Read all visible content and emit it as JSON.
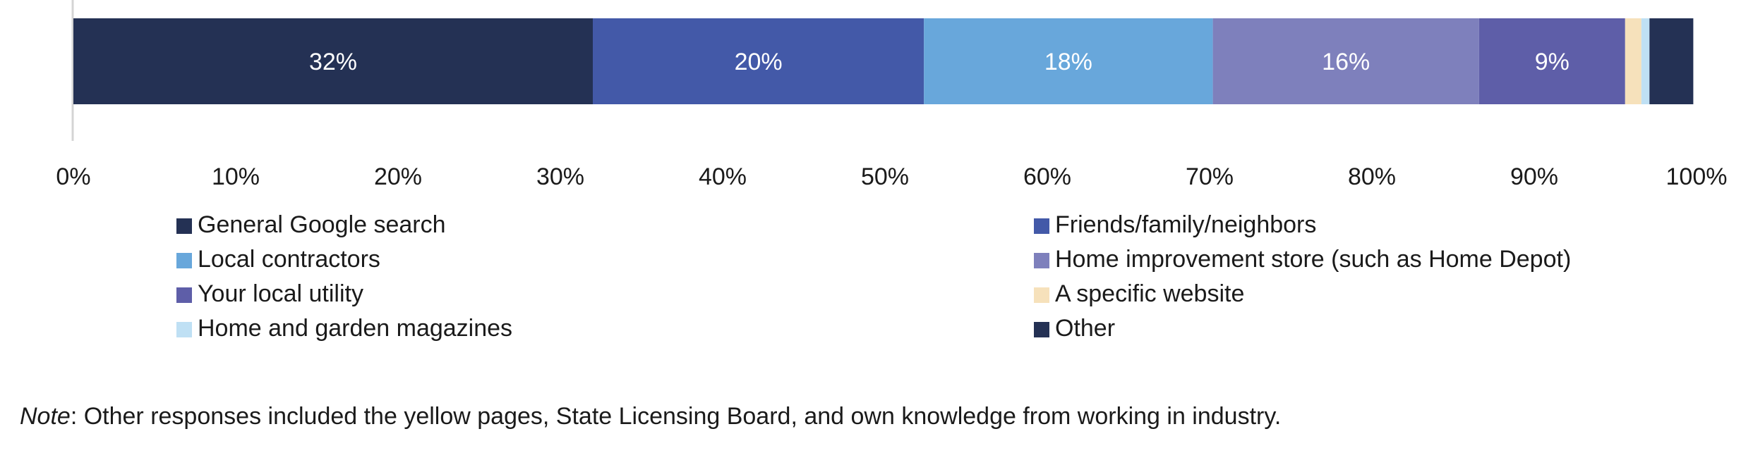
{
  "chart_data": {
    "type": "bar",
    "orientation": "horizontal-stacked",
    "title": "",
    "xlabel": "",
    "ylabel": "",
    "xlim": [
      0,
      100
    ],
    "tick_labels": [
      "0%",
      "10%",
      "20%",
      "30%",
      "40%",
      "50%",
      "60%",
      "70%",
      "80%",
      "90%",
      "100%"
    ],
    "series": [
      {
        "name": "General Google search",
        "value": 32,
        "label": "32%",
        "color": "#243154"
      },
      {
        "name": "Friends/family/neighbors",
        "value": 20.4,
        "label": "20%",
        "color": "#4359a8"
      },
      {
        "name": "Local contractors",
        "value": 17.8,
        "label": "18%",
        "color": "#68a7db"
      },
      {
        "name": "Home improvement store (such as Home Depot)",
        "value": 16.4,
        "label": "16%",
        "color": "#7e80bc"
      },
      {
        "name": "Your local utility",
        "value": 9,
        "label": "9%",
        "color": "#5e5ea8"
      },
      {
        "name": "A specific website",
        "value": 1,
        "label": "",
        "color": "#f6e1bb"
      },
      {
        "name": "Home and garden magazines",
        "value": 0.5,
        "label": "",
        "color": "#bfe0f4"
      },
      {
        "name": "Other",
        "value": 2.7,
        "label": "",
        "color": "#243154"
      }
    ],
    "legend_placement": "bottom, two columns"
  },
  "note": {
    "prefix": "Note",
    "text": ": Other responses included the yellow pages, State Licensing Board, and own knowledge from working in industry."
  }
}
